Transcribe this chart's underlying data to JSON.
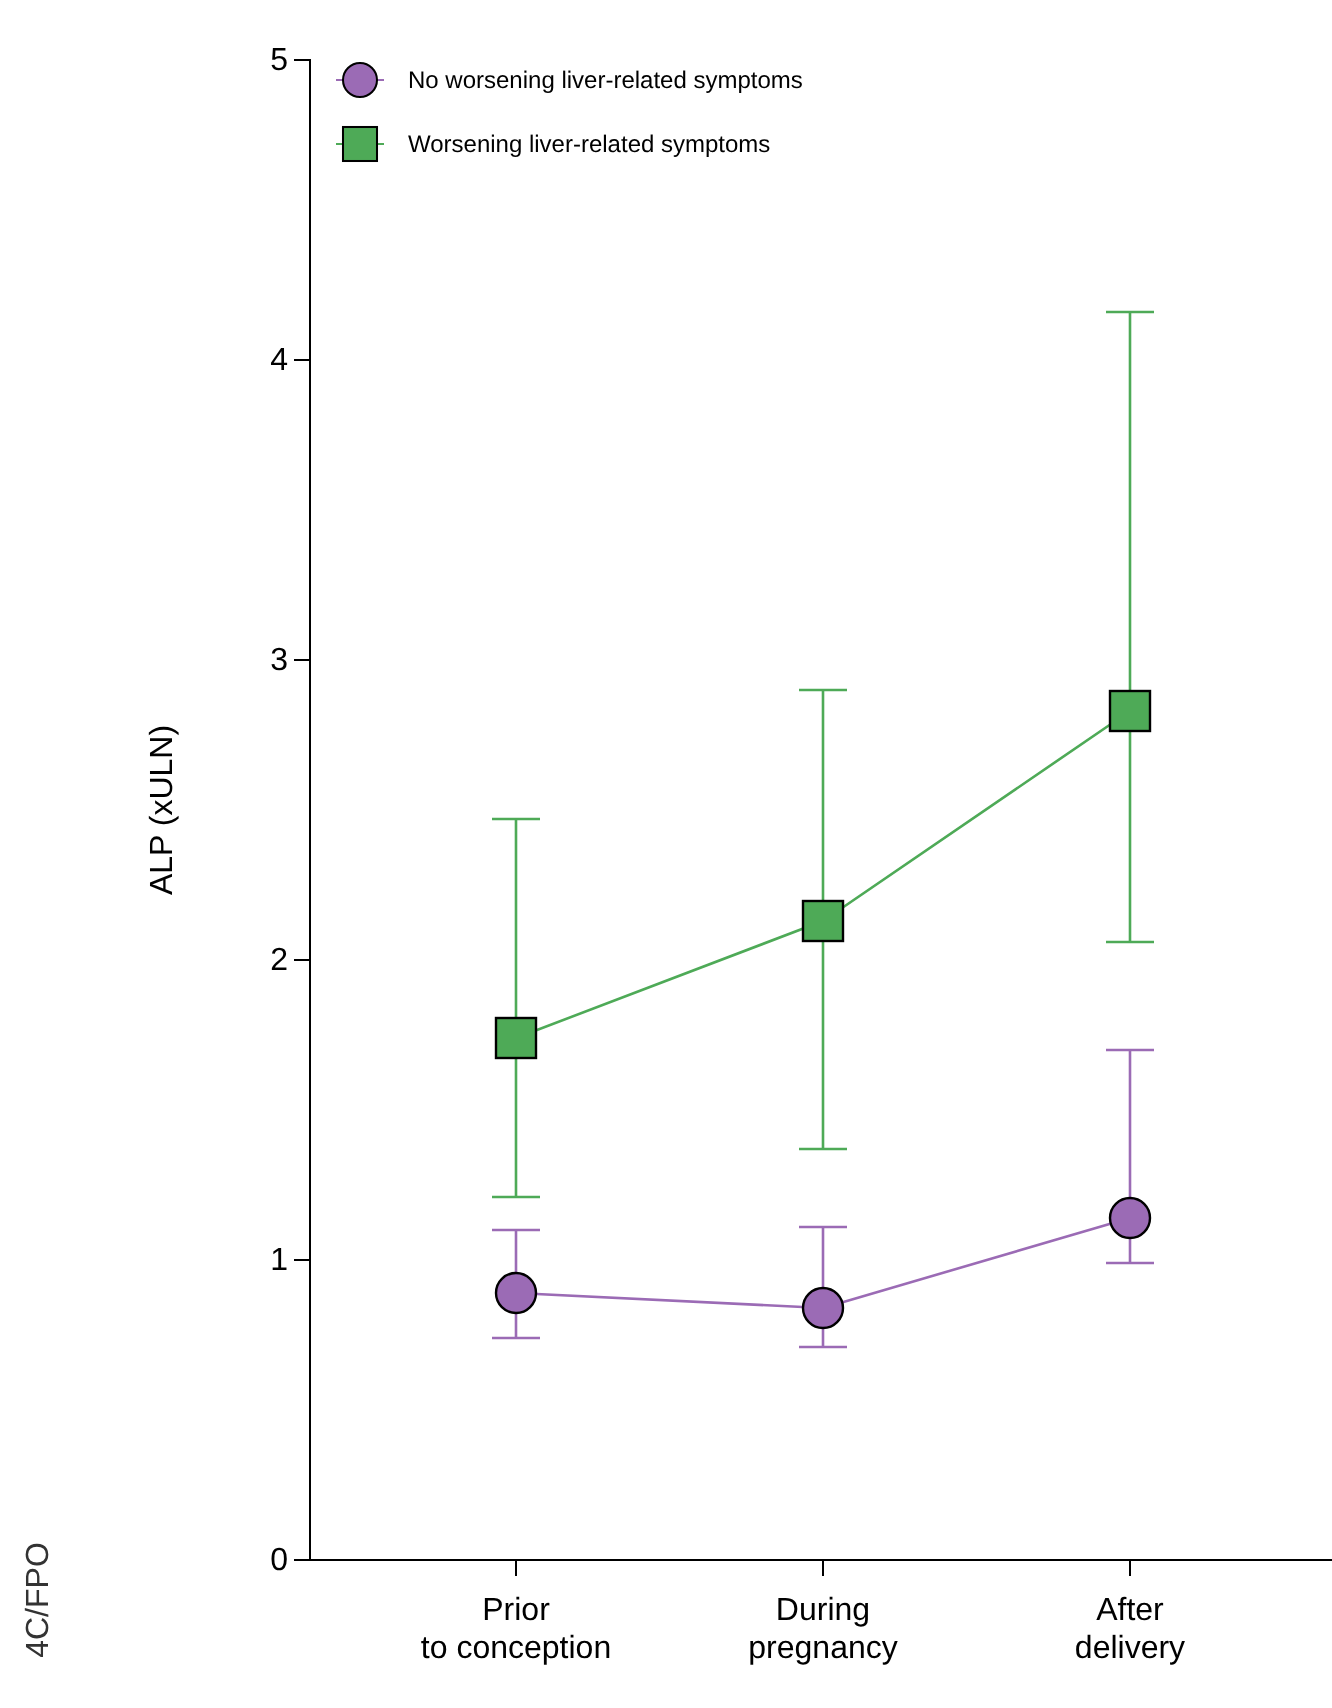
{
  "chart_data": {
    "type": "line",
    "ylabel": "ALP (xULN)",
    "categories": [
      "Prior\nto conception",
      "During\npregnancy",
      "After\ndelivery"
    ],
    "ylim": [
      0,
      5
    ],
    "yticks": [
      0,
      1,
      2,
      3,
      4,
      5
    ],
    "grid": false,
    "legend": "top left",
    "line_style": "solid",
    "series": [
      {
        "name": "No worsening liver-related symptoms",
        "color": "#9b6bb5",
        "marker": "circle",
        "values": [
          0.89,
          0.84,
          1.14
        ],
        "errors": [
          [
            0.74,
            1.1
          ],
          [
            0.71,
            1.11
          ],
          [
            0.99,
            1.7
          ]
        ]
      },
      {
        "name": "Worsening liver-related symptoms",
        "color": "#4eaa57",
        "marker": "square",
        "values": [
          1.74,
          2.13,
          2.83
        ],
        "errors": [
          [
            1.21,
            2.47
          ],
          [
            1.37,
            2.9
          ],
          [
            2.06,
            4.16
          ]
        ]
      }
    ],
    "annotations": [
      "4C/FPO"
    ]
  }
}
